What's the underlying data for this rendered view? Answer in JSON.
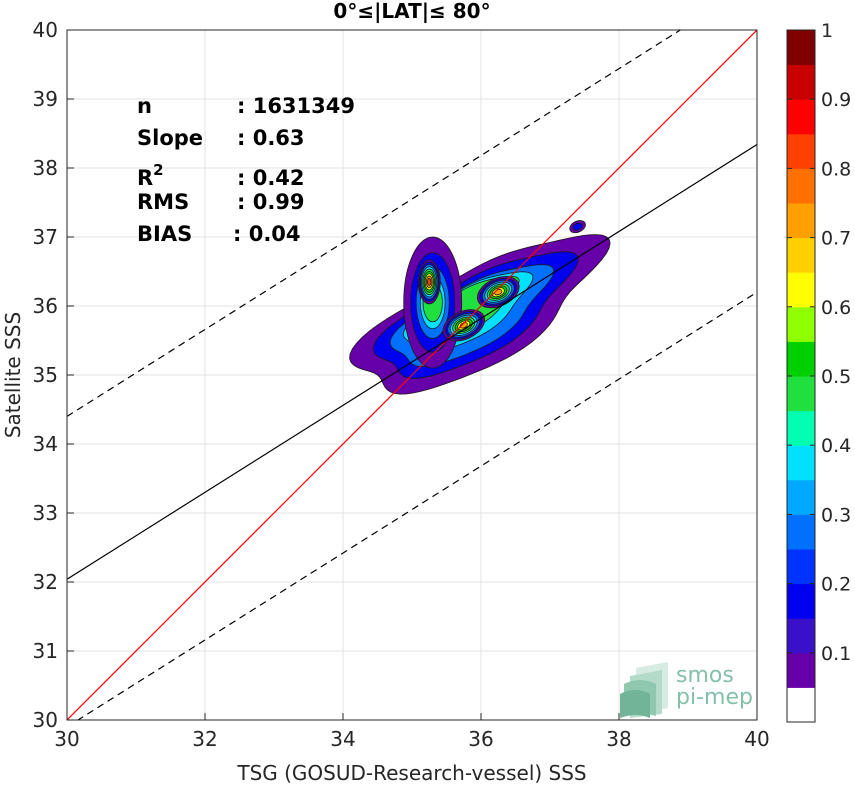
{
  "chart_data": {
    "type": "heatmap",
    "title": "0°≤|LAT|≤ 80°",
    "xlabel": "TSG (GOSUD-Research-vessel) SSS",
    "ylabel": "Satellite SSS",
    "xlim": [
      30,
      40
    ],
    "ylim": [
      30,
      40
    ],
    "xticks": [
      "30",
      "32",
      "34",
      "36",
      "38",
      "40"
    ],
    "yticks": [
      "30",
      "31",
      "32",
      "33",
      "34",
      "35",
      "36",
      "37",
      "38",
      "39",
      "40"
    ],
    "grid": true,
    "stats": [
      {
        "label": "n",
        "value": ": 1631349"
      },
      {
        "label": "Slope",
        "value": ": 0.63"
      },
      {
        "label": "R",
        "sup": "2",
        "value": ": 0.42"
      },
      {
        "label": "RMS",
        "value": ": 0.99"
      },
      {
        "label": "BIAS",
        "value": ": 0.04"
      }
    ],
    "reference_lines": [
      {
        "kind": "identity",
        "color": "#ff0000",
        "style": "solid",
        "slope": 1,
        "intercept": 0
      },
      {
        "kind": "regression",
        "color": "#000000",
        "style": "solid",
        "slope": 0.63,
        "intercept": 13.14
      },
      {
        "kind": "upper-bound",
        "color": "#000000",
        "style": "dashed",
        "slope": 0.63,
        "intercept": 15.5
      },
      {
        "kind": "lower-bound",
        "color": "#000000",
        "style": "dashed",
        "slope": 0.63,
        "intercept": 11.0
      }
    ],
    "density_levels": [
      0.05,
      0.15,
      0.25,
      0.35,
      0.45,
      0.55,
      0.65,
      0.75,
      0.85
    ],
    "density_peaks": [
      {
        "x": 35.25,
        "y": 36.35,
        "value": 0.9
      },
      {
        "x": 36.25,
        "y": 36.2,
        "value": 0.8
      },
      {
        "x": 35.75,
        "y": 35.72,
        "value": 0.8
      },
      {
        "x": 37.4,
        "y": 37.15,
        "value": 0.2
      }
    ],
    "colorbar": {
      "range": [
        0,
        1
      ],
      "ticks": [
        "0.1",
        "0.2",
        "0.3",
        "0.4",
        "0.5",
        "0.6",
        "0.7",
        "0.8",
        "0.9",
        "1"
      ],
      "colors": [
        "#ffffff",
        "#6600a8",
        "#3a10c8",
        "#0000f0",
        "#0033ff",
        "#0070ff",
        "#00a8ff",
        "#00e0ff",
        "#00ffb0",
        "#20e040",
        "#00d000",
        "#90ff00",
        "#ffff00",
        "#ffd000",
        "#ffa000",
        "#ff7000",
        "#ff4000",
        "#ff0000",
        "#c80000",
        "#800000"
      ]
    }
  },
  "logo": {
    "line1": "smos",
    "line2": "pi-mep"
  }
}
